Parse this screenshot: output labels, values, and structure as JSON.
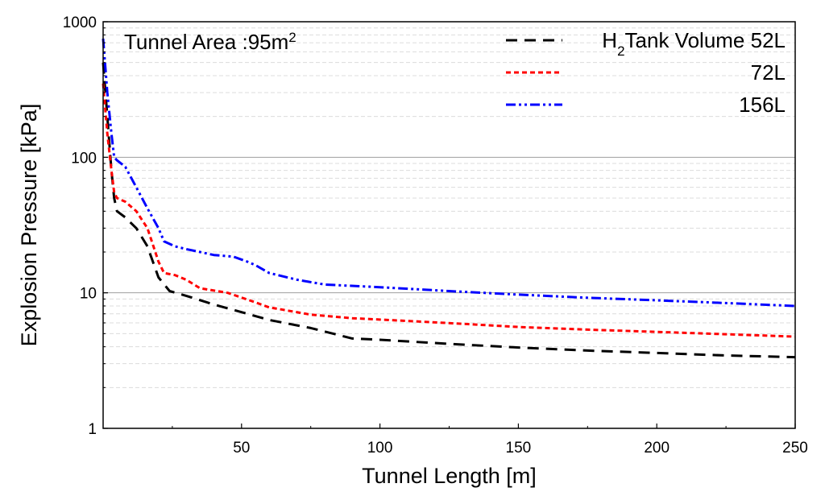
{
  "chart_data": {
    "type": "line",
    "title": "",
    "annotation": {
      "text": "Tunnel Area :95m",
      "superscript": "2"
    },
    "xlabel": "Tunnel Length [m]",
    "ylabel": "Explosion Pressure [kPa]",
    "xlim": [
      0,
      250
    ],
    "ylim": [
      1,
      1000
    ],
    "yscale": "log",
    "x_ticks": [
      50,
      100,
      150,
      200,
      250
    ],
    "x_tick_labels": [
      "50",
      "100",
      "150",
      "200",
      "250"
    ],
    "y_ticks": [
      1,
      10,
      100,
      1000
    ],
    "y_tick_labels": [
      "1",
      "10",
      "100",
      "1000"
    ],
    "grid": {
      "major": true,
      "minor": true
    },
    "legend_position": "top-right",
    "series": [
      {
        "name": "Tank Volume 52L",
        "legend_prefix": "H",
        "legend_subscript": "2",
        "color": "#000000",
        "dash": "dashed",
        "x": [
          0,
          1.5,
          3,
          4,
          5,
          8,
          12,
          16,
          20,
          24,
          30,
          40,
          50,
          60,
          75,
          90,
          100,
          125,
          150,
          175,
          200,
          225,
          250
        ],
        "y": [
          500,
          200,
          80,
          50,
          40,
          36,
          30,
          22,
          13,
          10.3,
          9.5,
          8.2,
          7.2,
          6.3,
          5.5,
          4.6,
          4.5,
          4.2,
          3.95,
          3.75,
          3.6,
          3.45,
          3.35
        ]
      },
      {
        "name": "72L",
        "color": "#ff0000",
        "dash": "dotted",
        "x": [
          0,
          1.5,
          3,
          4,
          5,
          8,
          12,
          16,
          20,
          22,
          26,
          30,
          35,
          45,
          55,
          60,
          65,
          75,
          90,
          110,
          130,
          150,
          175,
          200,
          225,
          250
        ],
        "y": [
          350,
          150,
          80,
          55,
          50,
          47,
          40,
          30,
          17,
          14,
          13.5,
          12.5,
          10.8,
          10,
          8.5,
          7.8,
          7.5,
          6.9,
          6.5,
          6.2,
          5.9,
          5.6,
          5.35,
          5.15,
          4.95,
          4.75
        ]
      },
      {
        "name": "156L",
        "color": "#0000ff",
        "dash": "dashdotdot",
        "x": [
          0,
          1.5,
          3,
          4,
          5,
          8,
          12,
          16,
          20,
          22,
          26,
          30,
          35,
          40,
          47,
          52,
          55,
          60,
          70,
          80,
          100,
          125,
          150,
          175,
          200,
          225,
          250
        ],
        "y": [
          750,
          300,
          150,
          100,
          95,
          85,
          60,
          42,
          30,
          24,
          22,
          21,
          20,
          19,
          18.5,
          17,
          16,
          14,
          12.5,
          11.5,
          11,
          10.3,
          9.7,
          9.2,
          8.8,
          8.4,
          8.0
        ]
      }
    ]
  }
}
